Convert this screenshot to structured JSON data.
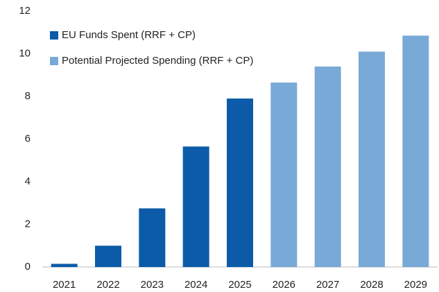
{
  "chart_data": {
    "type": "bar",
    "categories": [
      "2021",
      "2022",
      "2023",
      "2024",
      "2025",
      "2026",
      "2027",
      "2028",
      "2029"
    ],
    "series": [
      {
        "name": "EU Funds Spent (RRF + CP)",
        "color": "#0b5ba8",
        "values": [
          0.15,
          1.0,
          2.75,
          5.65,
          7.9,
          null,
          null,
          null,
          null
        ]
      },
      {
        "name": "Potential Projected Spending (RRF + CP)",
        "color": "#79a9d6",
        "values": [
          null,
          null,
          null,
          null,
          null,
          8.65,
          9.4,
          10.1,
          10.85
        ]
      }
    ],
    "ylim": [
      0,
      12
    ],
    "yticks": [
      0,
      2,
      4,
      6,
      8,
      10,
      12
    ],
    "grid": false,
    "legend": "upper left"
  }
}
